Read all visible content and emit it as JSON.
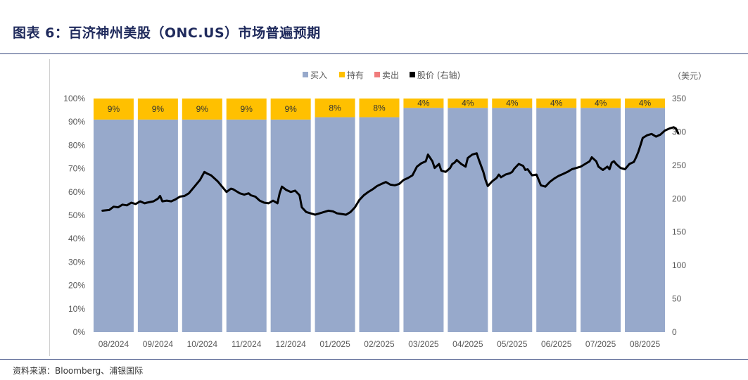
{
  "header": {
    "title": "图表 6：百济神州美股（ONC.US）市场普遍预期",
    "source": "资料来源：Bloomberg、浦银国际"
  },
  "colors": {
    "buy": "#97a9cb",
    "hold": "#ffc000",
    "sell": "#f07c7c",
    "price": "#000000"
  },
  "chart_data": {
    "type": "bar",
    "stacked": true,
    "categories": [
      "08/2024",
      "09/2024",
      "10/2024",
      "11/2024",
      "12/2024",
      "01/2025",
      "02/2025",
      "03/2025",
      "04/2025",
      "05/2025",
      "06/2025",
      "07/2025",
      "08/2025"
    ],
    "series": [
      {
        "name": "买入",
        "values": [
          91,
          91,
          91,
          91,
          91,
          92,
          92,
          96,
          96,
          96,
          96,
          96,
          96
        ]
      },
      {
        "name": "持有",
        "values": [
          9,
          9,
          9,
          9,
          9,
          8,
          8,
          4,
          4,
          4,
          4,
          4,
          4
        ],
        "labels": [
          "9%",
          "9%",
          "9%",
          "9%",
          "9%",
          "8%",
          "8%",
          "4%",
          "4%",
          "4%",
          "4%",
          "4%",
          "4%"
        ]
      },
      {
        "name": "卖出",
        "values": [
          0,
          0,
          0,
          0,
          0,
          0,
          0,
          0,
          0,
          0,
          0,
          0,
          0
        ]
      }
    ],
    "line_series": {
      "name": "股价 (右轴)",
      "axis": "right",
      "points": [
        [
          0,
          182
        ],
        [
          0.15,
          183
        ],
        [
          0.25,
          188
        ],
        [
          0.35,
          187
        ],
        [
          0.45,
          191
        ],
        [
          0.55,
          190
        ],
        [
          0.65,
          194
        ],
        [
          0.75,
          192
        ],
        [
          0.85,
          196
        ],
        [
          0.95,
          193
        ],
        [
          1.0,
          194
        ],
        [
          1.15,
          196
        ],
        [
          1.25,
          200
        ],
        [
          1.3,
          204
        ],
        [
          1.35,
          196
        ],
        [
          1.45,
          197
        ],
        [
          1.55,
          196
        ],
        [
          1.65,
          199
        ],
        [
          1.75,
          203
        ],
        [
          1.85,
          204
        ],
        [
          1.95,
          208
        ],
        [
          2.0,
          212
        ],
        [
          2.1,
          220
        ],
        [
          2.2,
          228
        ],
        [
          2.3,
          240
        ],
        [
          2.35,
          238
        ],
        [
          2.45,
          235
        ],
        [
          2.5,
          232
        ],
        [
          2.6,
          226
        ],
        [
          2.7,
          218
        ],
        [
          2.8,
          210
        ],
        [
          2.9,
          215
        ],
        [
          2.95,
          214
        ],
        [
          3.0,
          212
        ],
        [
          3.1,
          208
        ],
        [
          3.2,
          206
        ],
        [
          3.3,
          208
        ],
        [
          3.35,
          205
        ],
        [
          3.45,
          203
        ],
        [
          3.55,
          197
        ],
        [
          3.65,
          194
        ],
        [
          3.75,
          193
        ],
        [
          3.85,
          197
        ],
        [
          3.95,
          193
        ],
        [
          4.0,
          208
        ],
        [
          4.05,
          218
        ],
        [
          4.15,
          213
        ],
        [
          4.25,
          210
        ],
        [
          4.35,
          212
        ],
        [
          4.45,
          205
        ],
        [
          4.5,
          187
        ],
        [
          4.6,
          180
        ],
        [
          4.7,
          178
        ],
        [
          4.8,
          176
        ],
        [
          4.9,
          178
        ],
        [
          5.0,
          180
        ],
        [
          5.1,
          182
        ],
        [
          5.2,
          181
        ],
        [
          5.3,
          178
        ],
        [
          5.4,
          177
        ],
        [
          5.5,
          176
        ],
        [
          5.6,
          180
        ],
        [
          5.7,
          187
        ],
        [
          5.8,
          198
        ],
        [
          5.9,
          205
        ],
        [
          6.0,
          210
        ],
        [
          6.1,
          214
        ],
        [
          6.2,
          219
        ],
        [
          6.3,
          222
        ],
        [
          6.4,
          225
        ],
        [
          6.5,
          221
        ],
        [
          6.6,
          220
        ],
        [
          6.7,
          222
        ],
        [
          6.8,
          228
        ],
        [
          6.9,
          231
        ],
        [
          7.0,
          235
        ],
        [
          7.1,
          248
        ],
        [
          7.2,
          253
        ],
        [
          7.3,
          256
        ],
        [
          7.35,
          266
        ],
        [
          7.45,
          256
        ],
        [
          7.5,
          246
        ],
        [
          7.6,
          252
        ],
        [
          7.65,
          242
        ],
        [
          7.75,
          240
        ],
        [
          7.85,
          246
        ],
        [
          7.9,
          252
        ],
        [
          7.95,
          254
        ],
        [
          8.0,
          258
        ],
        [
          8.1,
          252
        ],
        [
          8.2,
          248
        ],
        [
          8.25,
          261
        ],
        [
          8.35,
          266
        ],
        [
          8.45,
          268
        ],
        [
          8.5,
          258
        ],
        [
          8.6,
          240
        ],
        [
          8.65,
          228
        ],
        [
          8.7,
          219
        ],
        [
          8.8,
          226
        ],
        [
          8.9,
          231
        ],
        [
          8.95,
          236
        ],
        [
          9.0,
          232
        ],
        [
          9.1,
          236
        ],
        [
          9.2,
          238
        ],
        [
          9.25,
          240
        ],
        [
          9.3,
          245
        ],
        [
          9.4,
          252
        ],
        [
          9.5,
          249
        ],
        [
          9.55,
          243
        ],
        [
          9.6,
          244
        ],
        [
          9.7,
          235
        ],
        [
          9.8,
          236
        ],
        [
          9.9,
          220
        ],
        [
          10.0,
          218
        ],
        [
          10.1,
          225
        ],
        [
          10.2,
          230
        ],
        [
          10.3,
          234
        ],
        [
          10.4,
          237
        ],
        [
          10.5,
          240
        ],
        [
          10.6,
          244
        ],
        [
          10.7,
          246
        ],
        [
          10.8,
          248
        ],
        [
          10.9,
          252
        ],
        [
          11.0,
          256
        ],
        [
          11.05,
          262
        ],
        [
          11.15,
          256
        ],
        [
          11.2,
          248
        ],
        [
          11.3,
          243
        ],
        [
          11.4,
          248
        ],
        [
          11.45,
          244
        ],
        [
          11.5,
          254
        ],
        [
          11.55,
          256
        ],
        [
          11.6,
          252
        ],
        [
          11.7,
          246
        ],
        [
          11.8,
          244
        ],
        [
          11.9,
          252
        ],
        [
          12.0,
          255
        ],
        [
          12.05,
          262
        ],
        [
          12.1,
          270
        ],
        [
          12.15,
          280
        ],
        [
          12.2,
          291
        ],
        [
          12.3,
          295
        ],
        [
          12.4,
          297
        ],
        [
          12.5,
          293
        ],
        [
          12.6,
          296
        ],
        [
          12.7,
          302
        ],
        [
          12.8,
          305
        ],
        [
          12.9,
          307
        ],
        [
          12.95,
          305
        ],
        [
          13.0,
          298
        ]
      ]
    },
    "yleft": {
      "ticks": [
        "0%",
        "10%",
        "20%",
        "30%",
        "40%",
        "50%",
        "60%",
        "70%",
        "80%",
        "90%",
        "100%"
      ],
      "ylim": [
        0,
        100
      ]
    },
    "yright": {
      "ticks": [
        "0",
        "50",
        "100",
        "150",
        "200",
        "250",
        "300",
        "350"
      ],
      "ylim": [
        0,
        350
      ],
      "unit": "（美元）"
    },
    "legend": {
      "position": "top-center",
      "entries": [
        "买入",
        "持有",
        "卖出",
        "股价 (右轴)"
      ]
    }
  }
}
